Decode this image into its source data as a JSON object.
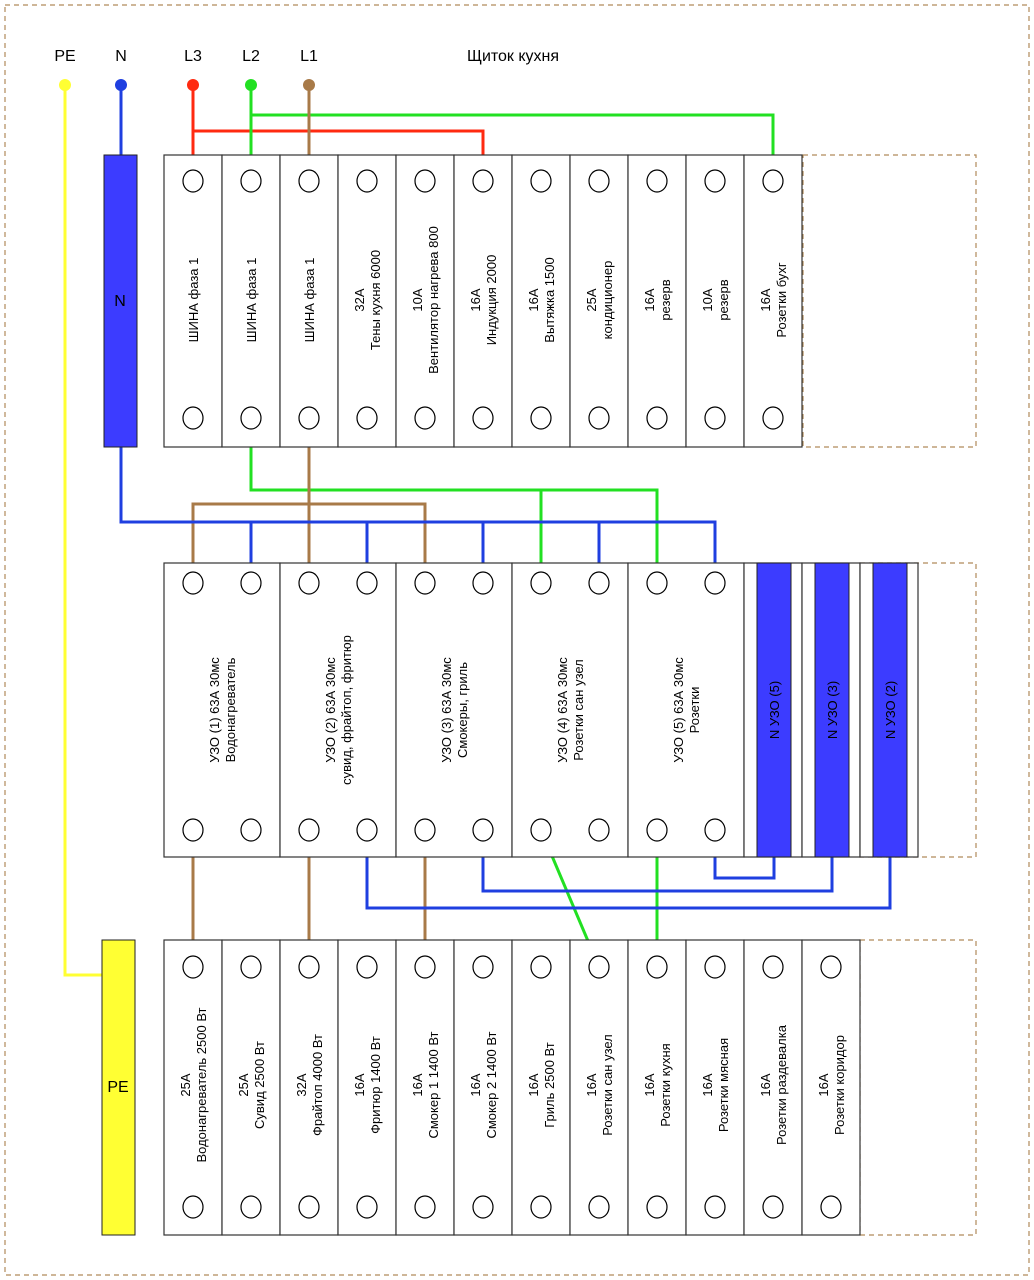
{
  "title": "Щиток кухня",
  "colors": {
    "PE": "#ffff33",
    "N": "#1f3fe0",
    "L1": "#a87a48",
    "L2": "#22e022",
    "L3": "#ff2a10",
    "bar": "#3c3cff",
    "frame": "#b08a5a"
  },
  "rails": [
    {
      "id": "PE",
      "label": "PE"
    },
    {
      "id": "N",
      "label": "N"
    },
    {
      "id": "L3",
      "label": "L3"
    },
    {
      "id": "L2",
      "label": "L2"
    },
    {
      "id": "L1",
      "label": "L1"
    }
  ],
  "n_bar_label": "N",
  "pe_bar_label": "PE",
  "top_row": [
    [
      "ШИНА фаза 1"
    ],
    [
      "ШИНА фаза 1"
    ],
    [
      "ШИНА фаза 1"
    ],
    [
      "32А",
      "Тены кухня 6000"
    ],
    [
      "10А",
      "Вентилятор нагрева 800"
    ],
    [
      "16А",
      "Индукция 2000"
    ],
    [
      "16А",
      "Вытяжка 1500"
    ],
    [
      "25А",
      "кондиционер"
    ],
    [
      "16А",
      "резерв"
    ],
    [
      "10А",
      "резерв"
    ],
    [
      "16А",
      "Розетки бухг"
    ]
  ],
  "rcd_row": [
    [
      "УЗО (1) 63А 30мс",
      "Водонагреватель"
    ],
    [
      "УЗО (2) 63А 30мс",
      "сувид, фрайтоп, фритюр"
    ],
    [
      "УЗО (3) 63А 30мс",
      "Смокеры, гриль"
    ],
    [
      "УЗО (4) 63А 30мс",
      "Розетки сан узел"
    ],
    [
      "УЗО (5) 63А 30мс",
      "Розетки"
    ]
  ],
  "rcd_n_bars": [
    "N УЗО (5)",
    "N УЗО (3)",
    "N УЗО (2)"
  ],
  "bottom_row": [
    [
      "25А",
      "Водонагреватель 2500 Вт"
    ],
    [
      "25А",
      "Сувид 2500 Вт"
    ],
    [
      "32А",
      "Фрайтоп 4000 Вт"
    ],
    [
      "16А",
      "Фритюр 1400 Вт"
    ],
    [
      "16А",
      "Смокер 1 1400 Вт"
    ],
    [
      "16А",
      "Смокер 2 1400 Вт"
    ],
    [
      "16А",
      "Гриль 2500 Вт"
    ],
    [
      "16А",
      "Розетки сан узел"
    ],
    [
      "16А",
      "Розетки кухня"
    ],
    [
      "16А",
      "Розетки мясная"
    ],
    [
      "16А",
      "Розетки раздевалка"
    ],
    [
      "16А",
      "Розетки коридор"
    ]
  ]
}
